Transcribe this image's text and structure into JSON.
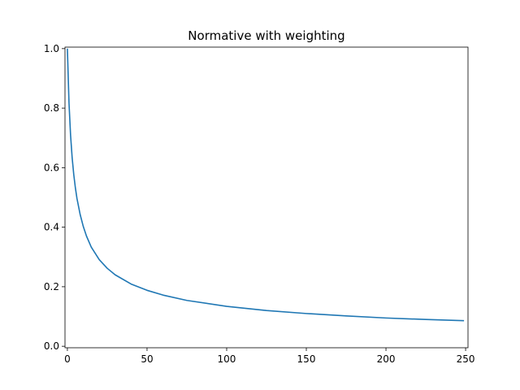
{
  "chart_data": {
    "type": "line",
    "title": "Normative with weighting",
    "xlabel": "",
    "ylabel": "",
    "xlim": [
      -1.5,
      251.5
    ],
    "ylim": [
      -0.005,
      1.005
    ],
    "x_ticks": [
      0,
      50,
      100,
      150,
      200,
      250
    ],
    "y_ticks": [
      0.0,
      0.2,
      0.4,
      0.6,
      0.8,
      1.0
    ],
    "x_tick_labels": [
      "0",
      "50",
      "100",
      "150",
      "200",
      "250"
    ],
    "y_tick_labels": [
      "0.0",
      "0.2",
      "0.4",
      "0.6",
      "0.8",
      "1.0"
    ],
    "grid": false,
    "series": [
      {
        "color": "#1f77b4",
        "x": [
          0,
          1,
          2,
          3,
          4,
          5,
          6,
          8,
          10,
          12,
          15,
          20,
          25,
          30,
          40,
          50,
          60,
          75,
          100,
          125,
          150,
          175,
          200,
          225,
          249
        ],
        "y": [
          1.0,
          0.819,
          0.709,
          0.633,
          0.577,
          0.533,
          0.497,
          0.443,
          0.402,
          0.37,
          0.333,
          0.291,
          0.262,
          0.24,
          0.209,
          0.188,
          0.172,
          0.154,
          0.134,
          0.12,
          0.11,
          0.102,
          0.095,
          0.09,
          0.086
        ]
      }
    ]
  }
}
